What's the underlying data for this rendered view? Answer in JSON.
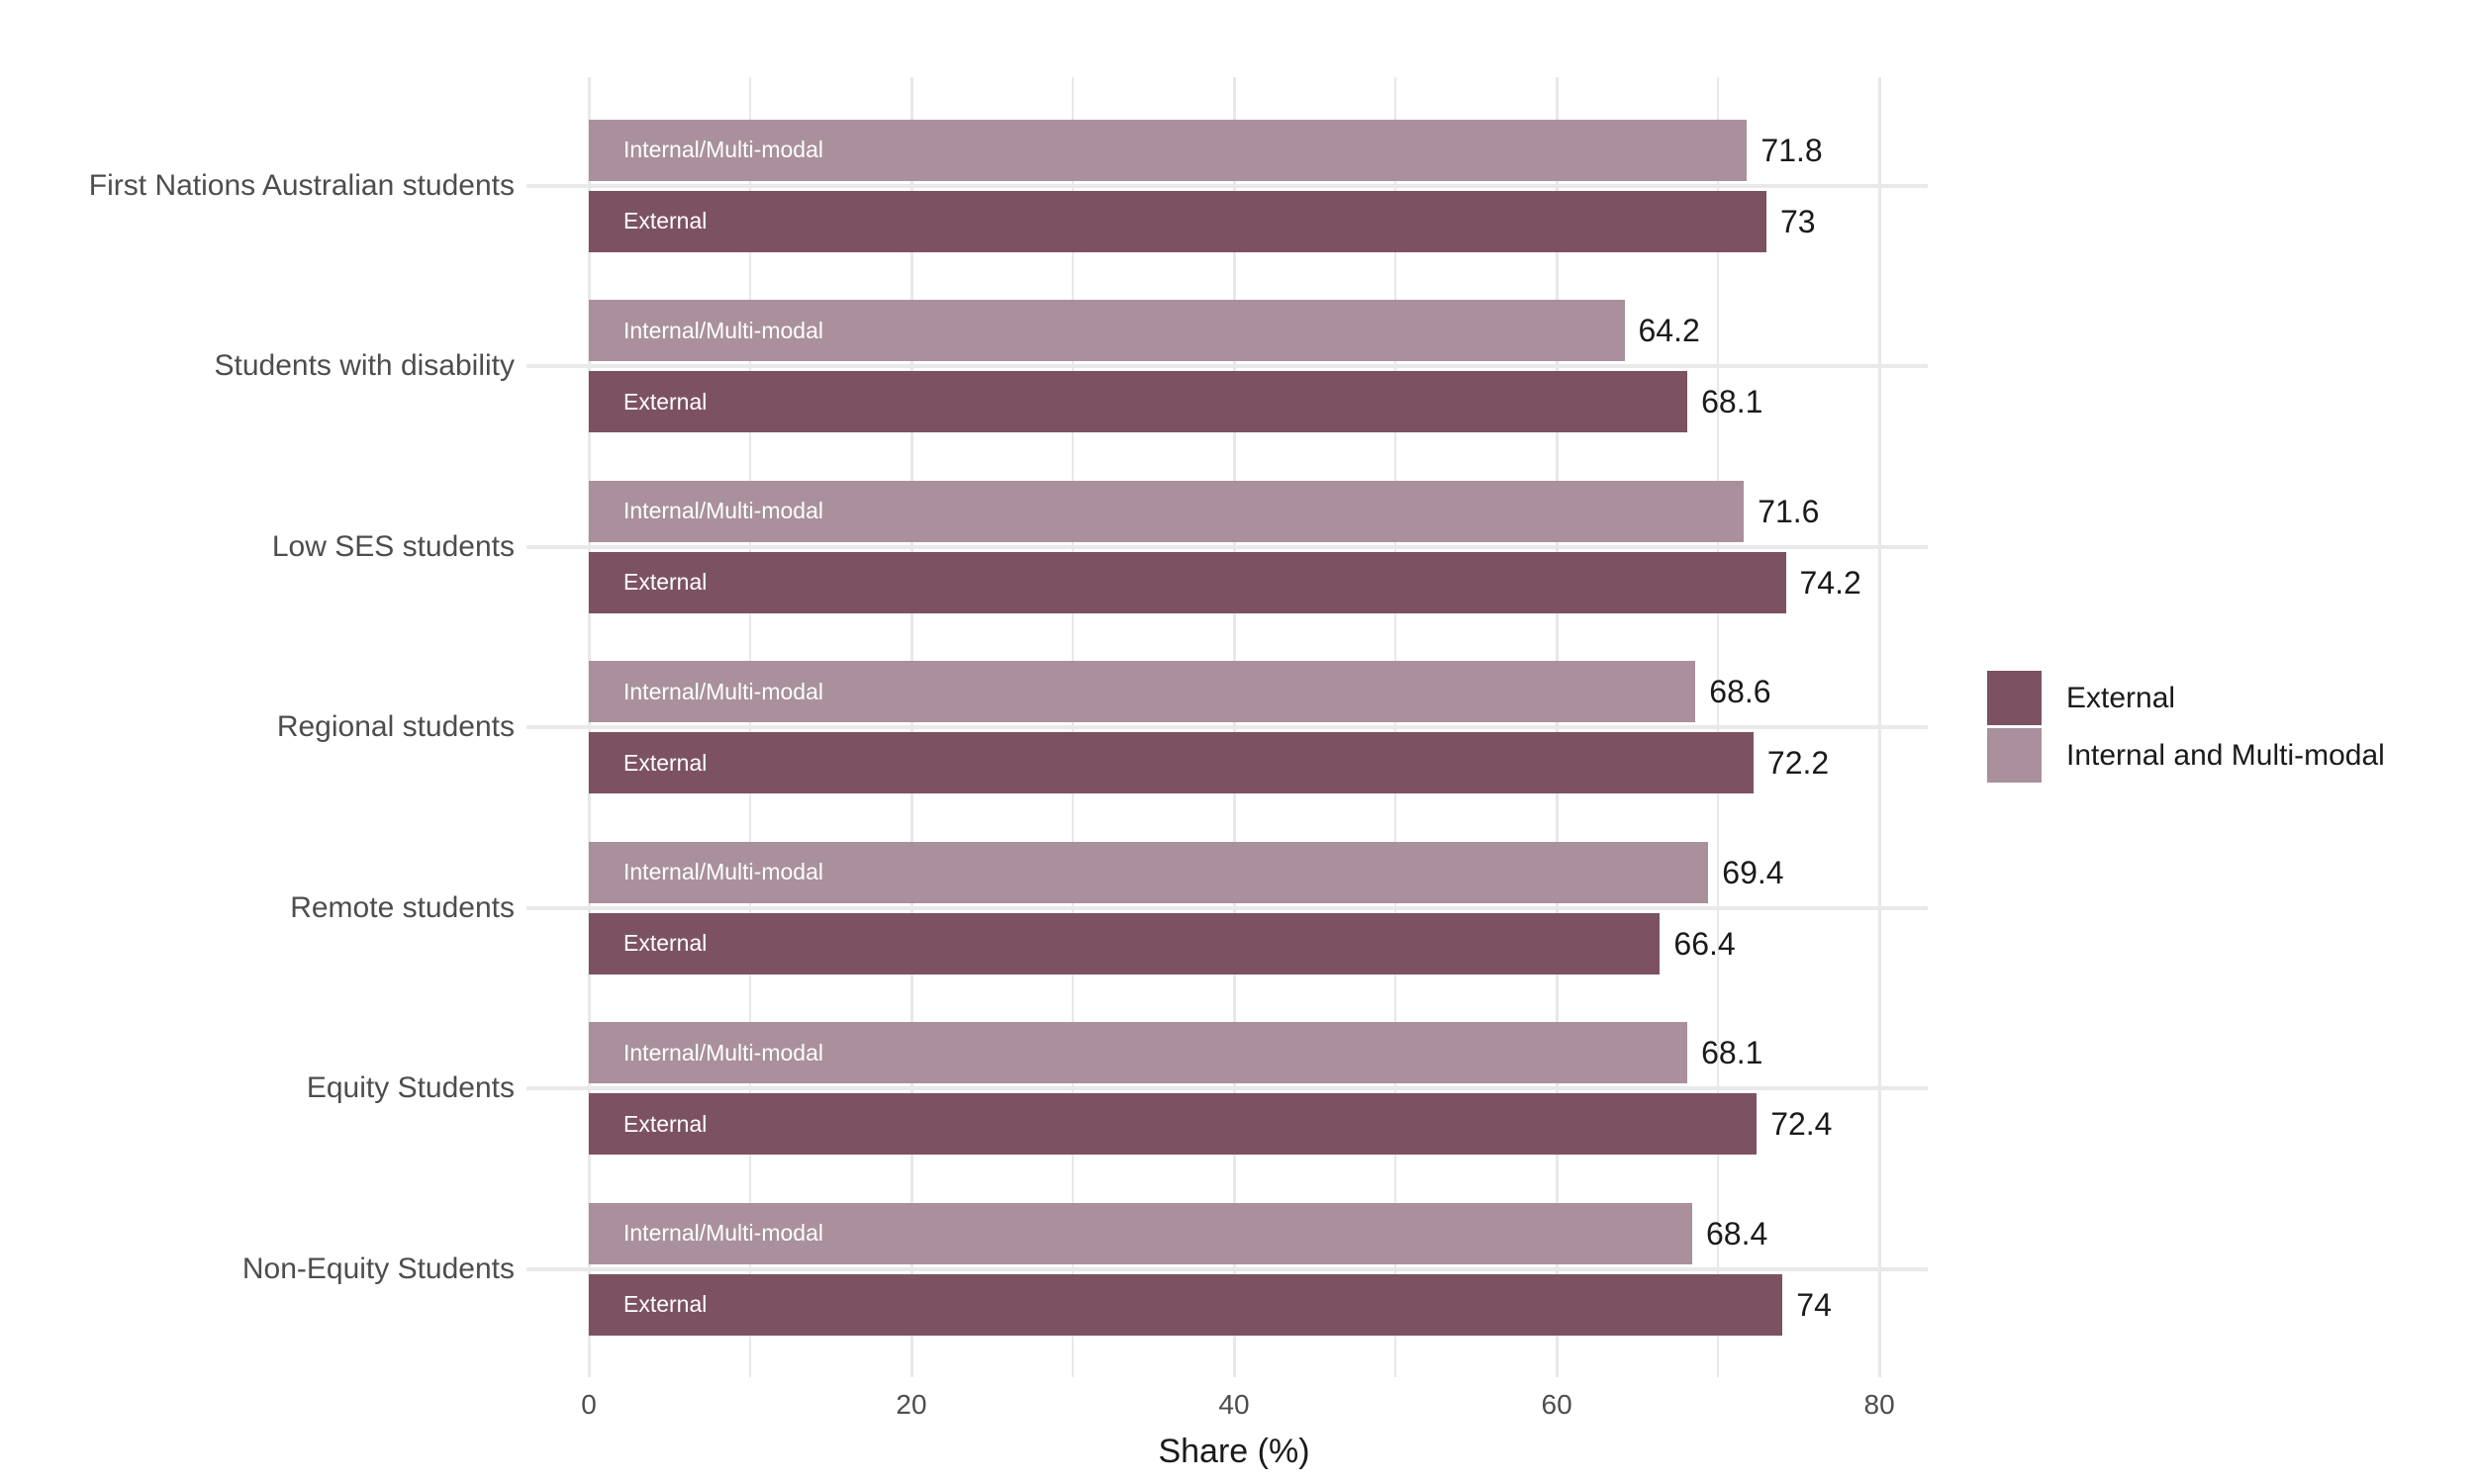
{
  "chart_data": {
    "type": "bar",
    "orientation": "horizontal",
    "title": "",
    "xlabel": "Share (%)",
    "xlim": [
      0,
      83
    ],
    "x_ticks": [
      0,
      20,
      40,
      60,
      80
    ],
    "x_minor_ticks": [
      10,
      30,
      50,
      70
    ],
    "grid": true,
    "legend_position": "right",
    "categories": [
      "First Nations Australian students",
      "Students with disability",
      "Low SES students",
      "Regional students",
      "Remote students",
      "Equity Students",
      "Non-Equity Students"
    ],
    "series": [
      {
        "id": "internal",
        "name": "Internal and Multi-modal",
        "bar_inner_label": "Internal/Multi-modal",
        "color": "#A9909C",
        "values": [
          71.8,
          64.2,
          71.6,
          68.6,
          69.4,
          68.1,
          68.4
        ],
        "value_labels": [
          "71.8",
          "64.2",
          "71.6",
          "68.6",
          "69.4",
          "68.1",
          "68.4"
        ]
      },
      {
        "id": "external",
        "name": "External",
        "bar_inner_label": "External",
        "color": "#7C5262",
        "values": [
          73,
          68.1,
          74.2,
          72.2,
          66.4,
          72.4,
          74
        ],
        "value_labels": [
          "73",
          "68.1",
          "74.2",
          "72.2",
          "66.4",
          "72.4",
          "74"
        ]
      }
    ]
  },
  "legend": {
    "items": [
      {
        "label": "External",
        "color": "#7C5262"
      },
      {
        "label": "Internal and Multi-modal",
        "color": "#A9909C"
      }
    ]
  },
  "colors": {
    "external_bar": "#7C5262",
    "internal_bar": "#A9909C",
    "gridline": "#e8e8e8",
    "axis_text": "#4d4d4d",
    "label_text": "#1a1a1a"
  }
}
